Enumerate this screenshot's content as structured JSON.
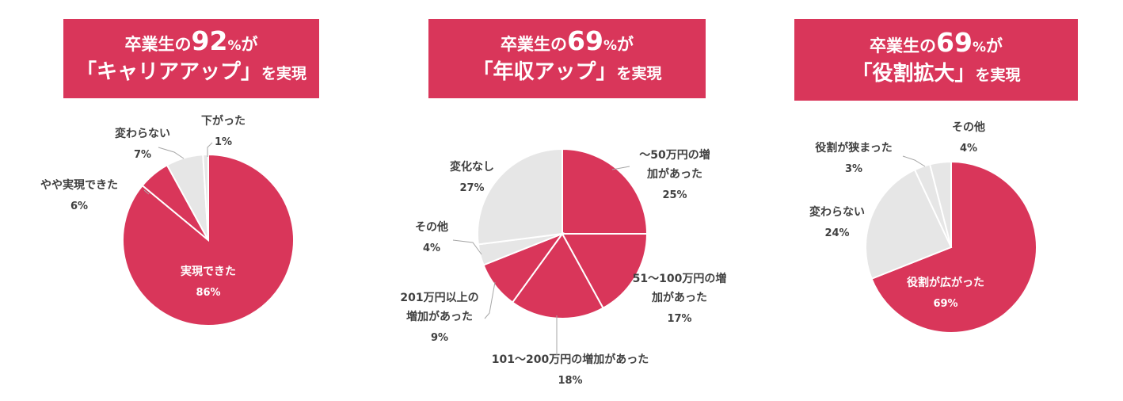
{
  "headers": [
    {
      "prefix": "卒業生の",
      "number": "92",
      "percent": "%",
      "suffix": "が",
      "line2": "「キャリアアップ」",
      "line2_tail": "を実現"
    },
    {
      "prefix": "卒業生の",
      "number": "69",
      "percent": "%",
      "suffix": "が",
      "line2": "「年収アップ」",
      "line2_tail": "を実現"
    },
    {
      "prefix": "卒業生の",
      "number": "69",
      "percent": "%",
      "suffix": "が",
      "line2": "「役割拡大」",
      "line2_tail": "を実現"
    }
  ],
  "colors": {
    "accent": "#d9365a",
    "light": "#e6e6e6",
    "text": "#404040"
  },
  "chart_data": [
    {
      "type": "pie",
      "start_angle_deg": 0,
      "direction": "clockwise",
      "slices": [
        {
          "label": "実現できた",
          "value": 86,
          "value_label": "86%",
          "color": "#d9365a"
        },
        {
          "label": "やや実現できた",
          "value": 6,
          "value_label": "6%",
          "color": "#d9365a"
        },
        {
          "label": "変わらない",
          "value": 7,
          "value_label": "7%",
          "color": "#e6e6e6"
        },
        {
          "label": "下がった",
          "value": 1,
          "value_label": "1%",
          "color": "#e6e6e6"
        }
      ]
    },
    {
      "type": "pie",
      "start_angle_deg": 0,
      "direction": "clockwise",
      "slices": [
        {
          "label": "〜50万円の増\n加があった",
          "value": 25,
          "value_label": "25%",
          "color": "#d9365a"
        },
        {
          "label": "51〜100万円の増\n加があった",
          "value": 17,
          "value_label": "17%",
          "color": "#d9365a"
        },
        {
          "label": "101〜200万円の増加があった",
          "value": 18,
          "value_label": "18%",
          "color": "#d9365a"
        },
        {
          "label": "201万円以上の\n増加があった",
          "value": 9,
          "value_label": "9%",
          "color": "#d9365a"
        },
        {
          "label": "その他",
          "value": 4,
          "value_label": "4%",
          "color": "#e6e6e6"
        },
        {
          "label": "変化なし",
          "value": 27,
          "value_label": "27%",
          "color": "#e6e6e6"
        }
      ]
    },
    {
      "type": "pie",
      "start_angle_deg": 0,
      "direction": "clockwise",
      "slices": [
        {
          "label": "役割が広がった",
          "value": 69,
          "value_label": "69%",
          "color": "#d9365a"
        },
        {
          "label": "変わらない",
          "value": 24,
          "value_label": "24%",
          "color": "#e6e6e6"
        },
        {
          "label": "役割が狭まった",
          "value": 3,
          "value_label": "3%",
          "color": "#e6e6e6"
        },
        {
          "label": "その他",
          "value": 4,
          "value_label": "4%",
          "color": "#e6e6e6"
        }
      ]
    }
  ]
}
